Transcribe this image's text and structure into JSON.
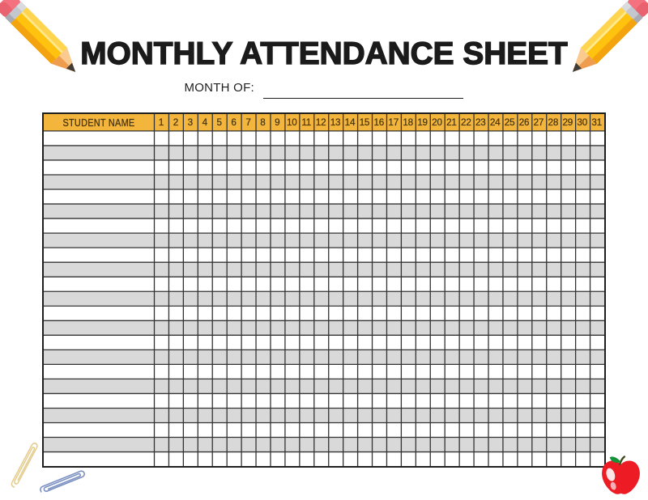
{
  "title": "MONTHLY ATTENDANCE SHEET",
  "month_field": {
    "label": "MONTH OF:",
    "value": ""
  },
  "table": {
    "name_header": "STUDENT NAME",
    "days": [
      "1",
      "2",
      "3",
      "4",
      "5",
      "6",
      "7",
      "8",
      "9",
      "10",
      "11",
      "12",
      "13",
      "14",
      "15",
      "16",
      "17",
      "18",
      "19",
      "20",
      "21",
      "22",
      "23",
      "24",
      "25",
      "26",
      "27",
      "28",
      "29",
      "30",
      "31"
    ],
    "row_count": 23,
    "cell_value": ""
  },
  "colors": {
    "title_color": "#1b1b1b",
    "header_bg": "#f3b53c",
    "header_text": "#4a3711",
    "row_alt_bg": "#d9d9d9",
    "grid_line": "#333333",
    "outer_border": "#1f1f1f",
    "pencil_yellow": "#ffc20e",
    "pencil_eraser_pink": "#f3707e",
    "apple_red": "#ec1b24",
    "leaf_green": "#169b38",
    "paperclip_yellow": "#e3cd8e",
    "paperclip_blue": "#7e92c2"
  },
  "icons": {
    "top_left": "pencil-icon",
    "top_right": "pencil-icon",
    "bottom_left": [
      "paperclip-icon",
      "paperclip-icon"
    ],
    "bottom_right": "apple-icon"
  }
}
